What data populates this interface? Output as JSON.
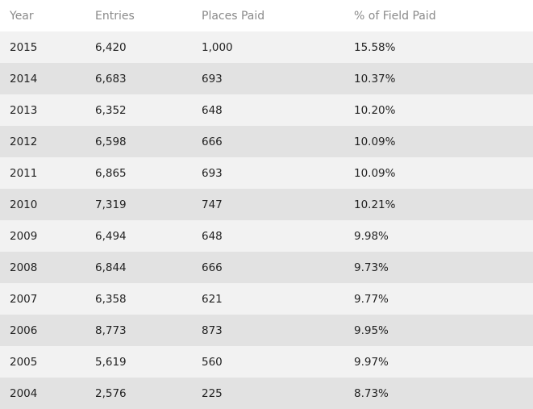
{
  "table": {
    "headers": [
      "Year",
      "Entries",
      "Places Paid",
      "% of Field Paid"
    ],
    "rows": [
      [
        "2015",
        "6,420",
        "1,000",
        "15.58%"
      ],
      [
        "2014",
        "6,683",
        "693",
        "10.37%"
      ],
      [
        "2013",
        "6,352",
        "648",
        "10.20%"
      ],
      [
        "2012",
        "6,598",
        "666",
        "10.09%"
      ],
      [
        "2011",
        "6,865",
        "693",
        "10.09%"
      ],
      [
        "2010",
        "7,319",
        "747",
        "10.21%"
      ],
      [
        "2009",
        "6,494",
        "648",
        "9.98%"
      ],
      [
        "2008",
        "6,844",
        "666",
        "9.73%"
      ],
      [
        "2007",
        "6,358",
        "621",
        "9.77%"
      ],
      [
        "2006",
        "8,773",
        "873",
        "9.95%"
      ],
      [
        "2005",
        "5,619",
        "560",
        "9.97%"
      ],
      [
        "2004",
        "2,576",
        "225",
        "8.73%"
      ]
    ]
  }
}
